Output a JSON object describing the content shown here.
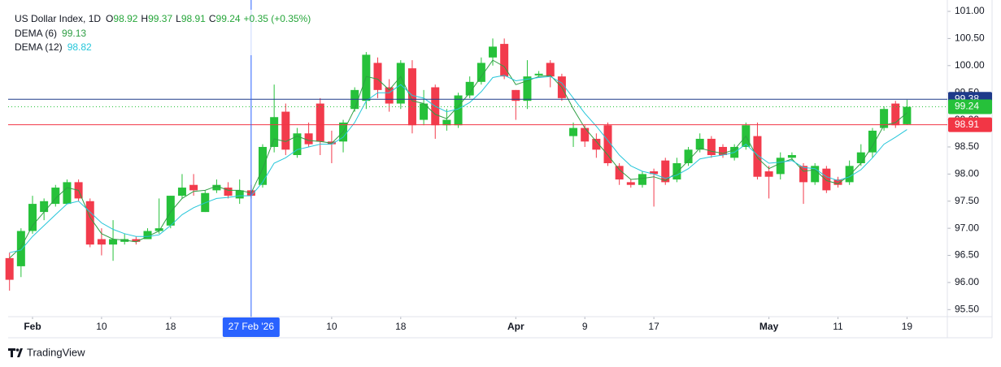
{
  "chart_data": {
    "type": "candlestick",
    "title": "US Dollar Index, 1D",
    "header_labels": [
      "O",
      "H",
      "L",
      "C"
    ],
    "change": "+0.35 (+0.35%)",
    "categories": [
      null,
      null,
      "Feb",
      null,
      null,
      null,
      null,
      null,
      "10",
      null,
      null,
      null,
      null,
      null,
      "18",
      null,
      null,
      null,
      null,
      null,
      null,
      "27 Feb '26",
      null,
      null,
      null,
      null,
      null,
      null,
      "10",
      null,
      null,
      null,
      null,
      null,
      "18",
      null,
      null,
      null,
      null,
      null,
      null,
      null,
      null,
      null,
      "Apr",
      null,
      null,
      null,
      null,
      null,
      "9",
      null,
      null,
      null,
      null,
      null,
      "17",
      null,
      null,
      null,
      null,
      null,
      null,
      null,
      null,
      null,
      "May",
      null,
      null,
      null,
      null,
      null,
      "11",
      null,
      null,
      null,
      null,
      null,
      "19"
    ],
    "open": [
      96.45,
      96.3,
      96.95,
      97.3,
      97.45,
      97.45,
      97.85,
      97.5,
      96.8,
      96.7,
      96.75,
      96.8,
      96.8,
      96.95,
      97.05,
      97.6,
      97.8,
      97.3,
      97.7,
      97.75,
      97.55,
      97.7,
      97.8,
      98.5,
      99.15,
      98.35,
      98.75,
      99.3,
      98.6,
      98.6,
      99.2,
      99.35,
      100.05,
      99.6,
      99.3,
      99.95,
      99.0,
      99.6,
      98.9,
      98.9,
      99.45,
      99.7,
      100.15,
      100.4,
      99.55,
      99.35,
      99.82,
      100.05,
      99.8,
      98.7,
      98.85,
      98.65,
      98.9,
      98.15,
      97.85,
      97.8,
      98.05,
      98.25,
      97.9,
      98.2,
      98.45,
      98.65,
      98.5,
      98.3,
      98.5,
      98.7,
      98.05,
      98.0,
      98.3,
      98.15,
      97.85,
      98.1,
      97.9,
      97.85,
      98.2,
      98.4,
      98.85,
      99.3,
      98.92
    ],
    "high": [
      96.55,
      97.0,
      97.6,
      97.55,
      97.8,
      97.9,
      97.9,
      97.55,
      97.0,
      97.15,
      96.9,
      96.85,
      97.0,
      97.55,
      97.6,
      98.0,
      98.0,
      97.7,
      97.9,
      97.85,
      97.9,
      97.8,
      98.55,
      99.65,
      99.3,
      98.85,
      98.95,
      99.4,
      98.8,
      99.0,
      99.6,
      100.25,
      100.15,
      99.75,
      100.1,
      100.1,
      99.55,
      99.65,
      99.2,
      99.5,
      99.8,
      100.15,
      100.5,
      100.5,
      99.55,
      100.1,
      99.9,
      100.1,
      99.85,
      98.95,
      98.9,
      98.75,
      98.95,
      98.2,
      97.9,
      98.05,
      98.1,
      98.3,
      98.3,
      98.5,
      98.75,
      98.7,
      98.55,
      98.55,
      98.95,
      98.95,
      98.15,
      98.4,
      98.4,
      98.2,
      98.2,
      98.15,
      97.95,
      98.25,
      98.55,
      98.85,
      99.25,
      99.35,
      99.37
    ],
    "low": [
      95.85,
      96.1,
      96.9,
      97.15,
      97.4,
      97.45,
      97.5,
      96.65,
      96.5,
      96.4,
      96.7,
      96.7,
      96.8,
      96.9,
      97.0,
      97.55,
      97.6,
      97.3,
      97.65,
      97.55,
      97.45,
      97.55,
      97.75,
      98.4,
      98.35,
      98.3,
      98.5,
      98.35,
      98.2,
      98.4,
      99.15,
      99.2,
      99.4,
      99.15,
      99.2,
      98.75,
      98.9,
      98.65,
      98.8,
      98.85,
      99.4,
      99.65,
      100.0,
      99.75,
      99.0,
      99.2,
      99.8,
      99.6,
      99.35,
      98.5,
      98.5,
      98.3,
      98.15,
      97.8,
      97.75,
      97.75,
      97.4,
      97.8,
      97.85,
      98.15,
      98.4,
      98.3,
      98.3,
      98.25,
      98.45,
      97.9,
      97.55,
      97.9,
      98.25,
      97.45,
      97.8,
      97.65,
      97.75,
      97.8,
      98.15,
      98.3,
      98.8,
      98.85,
      98.91
    ],
    "close": [
      96.05,
      96.95,
      97.45,
      97.5,
      97.75,
      97.85,
      97.55,
      96.7,
      96.7,
      96.8,
      96.8,
      96.75,
      96.95,
      97.0,
      97.6,
      97.75,
      97.7,
      97.65,
      97.8,
      97.6,
      97.7,
      97.6,
      98.5,
      99.05,
      98.45,
      98.75,
      98.55,
      98.6,
      98.55,
      98.95,
      99.55,
      100.2,
      99.55,
      99.3,
      100.05,
      98.9,
      99.3,
      98.9,
      99.0,
      99.45,
      99.7,
      100.05,
      100.35,
      99.8,
      99.35,
      99.8,
      99.85,
      99.8,
      99.4,
      98.85,
      98.6,
      98.45,
      98.2,
      97.9,
      97.8,
      98.0,
      98.0,
      97.85,
      98.2,
      98.45,
      98.65,
      98.35,
      98.35,
      98.5,
      98.9,
      97.95,
      97.95,
      98.3,
      98.35,
      97.85,
      98.15,
      97.7,
      97.8,
      98.15,
      98.4,
      98.8,
      99.2,
      98.9,
      99.24
    ],
    "up_color": "#26c13a",
    "down_color": "#f23b4c",
    "series": [
      {
        "name": "DEMA (6)",
        "color": "#2f9e44",
        "values": [
          96.45,
          96.65,
          97.05,
          97.3,
          97.55,
          97.75,
          97.7,
          97.2,
          96.9,
          96.8,
          96.78,
          96.75,
          96.85,
          96.95,
          97.3,
          97.55,
          97.68,
          97.7,
          97.78,
          97.7,
          97.7,
          97.65,
          98.1,
          98.65,
          98.6,
          98.7,
          98.62,
          98.6,
          98.57,
          98.78,
          99.2,
          99.8,
          99.75,
          99.55,
          99.8,
          99.35,
          99.3,
          99.1,
          99.02,
          99.25,
          99.5,
          99.8,
          100.1,
          99.98,
          99.65,
          99.72,
          99.8,
          99.82,
          99.6,
          99.2,
          98.85,
          98.6,
          98.35,
          98.08,
          97.9,
          97.92,
          97.95,
          97.88,
          98.03,
          98.25,
          98.48,
          98.42,
          98.38,
          98.45,
          98.7,
          98.3,
          98.1,
          98.2,
          98.28,
          98.05,
          98.08,
          97.88,
          97.82,
          97.98,
          98.2,
          98.52,
          98.9,
          98.95,
          99.13
        ]
      },
      {
        "name": "DEMA (12)",
        "color": "#26c6da",
        "values": [
          96.55,
          96.6,
          96.85,
          97.05,
          97.25,
          97.45,
          97.5,
          97.3,
          97.1,
          96.98,
          96.9,
          96.85,
          96.85,
          96.88,
          97.05,
          97.25,
          97.38,
          97.47,
          97.55,
          97.57,
          97.6,
          97.6,
          97.85,
          98.2,
          98.3,
          98.45,
          98.5,
          98.55,
          98.55,
          98.68,
          98.95,
          99.35,
          99.5,
          99.5,
          99.65,
          99.45,
          99.4,
          99.25,
          99.15,
          99.2,
          99.32,
          99.52,
          99.78,
          99.82,
          99.72,
          99.75,
          99.78,
          99.8,
          99.68,
          99.4,
          99.12,
          98.88,
          98.62,
          98.35,
          98.15,
          98.05,
          98.0,
          97.92,
          97.98,
          98.1,
          98.28,
          98.32,
          98.35,
          98.4,
          98.55,
          98.35,
          98.2,
          98.22,
          98.25,
          98.12,
          98.1,
          97.95,
          97.88,
          97.95,
          98.08,
          98.3,
          98.55,
          98.68,
          98.82
        ]
      }
    ],
    "ylim": [
      95.37,
      101.12
    ],
    "yticks": [
      {
        "value": 95.5,
        "label": "95.50"
      },
      {
        "value": 96,
        "label": "96.00"
      },
      {
        "value": 96.5,
        "label": "96.50"
      },
      {
        "value": 97,
        "label": "97.00"
      },
      {
        "value": 97.5,
        "label": "97.50"
      },
      {
        "value": 98,
        "label": "98.00"
      },
      {
        "value": 98.5,
        "label": "98.50"
      },
      {
        "value": 99,
        "label": "99.00"
      },
      {
        "value": 99.5,
        "label": "99.50"
      },
      {
        "value": 100,
        "label": "100.00"
      },
      {
        "value": 100.5,
        "label": "100.50"
      },
      {
        "value": 101,
        "label": "101.00"
      }
    ],
    "grid": false,
    "crosshair": {
      "price": 99.38,
      "color": "#2962ff"
    },
    "price_line": {
      "value": 98.91,
      "color": "#f23645"
    },
    "brand": "TradingView"
  }
}
